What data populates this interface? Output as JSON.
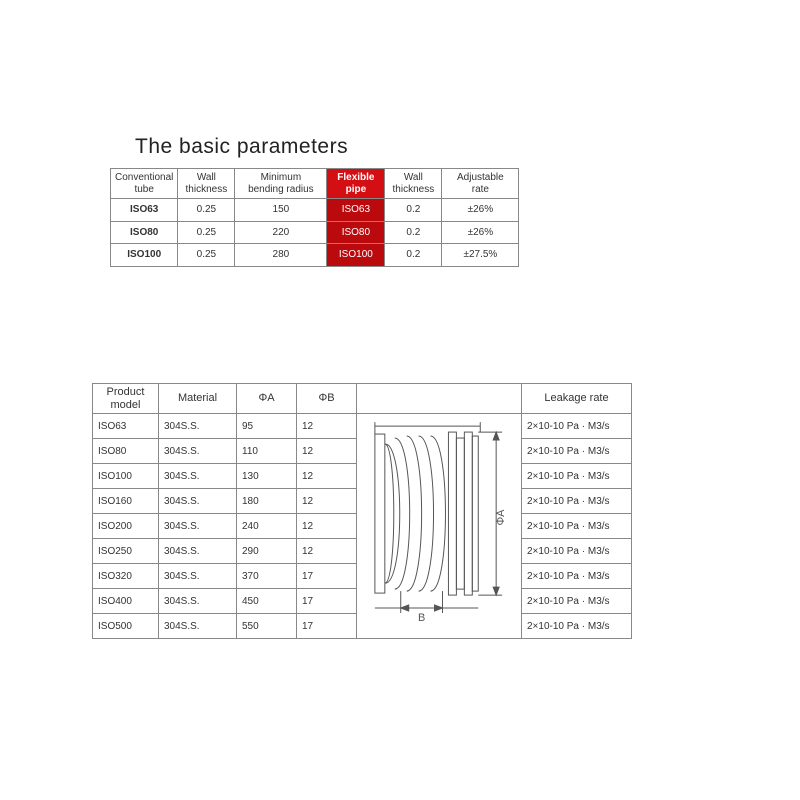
{
  "title": "The basic parameters",
  "table1": {
    "headers": [
      "Conventional\ntube",
      "Wall\nthickness",
      "Minimum\nbending radius",
      "Flexible\npipe",
      "Wall\nthickness",
      "Adjustable\nrate"
    ],
    "rows": [
      [
        "ISO63",
        "0.25",
        "150",
        "ISO63",
        "0.2",
        "±26%"
      ],
      [
        "ISO80",
        "0.25",
        "220",
        "ISO80",
        "0.2",
        "±26%"
      ],
      [
        "ISO100",
        "0.25",
        "280",
        "ISO100",
        "0.2",
        "±27.5%"
      ]
    ],
    "highlight_col": 3,
    "bold_col": 0,
    "header_highlight_color": "#d40f13",
    "cell_highlight_color": "#bb0a0e"
  },
  "table2": {
    "headers": [
      "Product\nmodel",
      "Material",
      "ΦA",
      "ΦB",
      "",
      "Leakage rate"
    ],
    "rows": [
      [
        "ISO63",
        "304S.S.",
        "95",
        "12",
        "2×10-10 Pa · M3/s"
      ],
      [
        "ISO80",
        "304S.S.",
        "110",
        "12",
        "2×10-10 Pa · M3/s"
      ],
      [
        "ISO100",
        "304S.S.",
        "130",
        "12",
        "2×10-10 Pa · M3/s"
      ],
      [
        "ISO160",
        "304S.S.",
        "180",
        "12",
        "2×10-10 Pa · M3/s"
      ],
      [
        "ISO200",
        "304S.S.",
        "240",
        "12",
        "2×10-10 Pa · M3/s"
      ],
      [
        "ISO250",
        "304S.S.",
        "290",
        "12",
        "2×10-10 Pa · M3/s"
      ],
      [
        "ISO320",
        "304S.S.",
        "370",
        "17",
        "2×10-10 Pa · M3/s"
      ],
      [
        "ISO400",
        "304S.S.",
        "450",
        "17",
        "2×10-10 Pa · M3/s"
      ],
      [
        "ISO500",
        "304S.S.",
        "550",
        "17",
        "2×10-10 Pa · M3/s"
      ]
    ],
    "diagram": {
      "label_a": "ΦA",
      "label_b": "B",
      "stroke": "#555555",
      "stroke_width": 1
    }
  },
  "colors": {
    "border": "#888888",
    "text": "#333333",
    "bg": "#ffffff"
  }
}
